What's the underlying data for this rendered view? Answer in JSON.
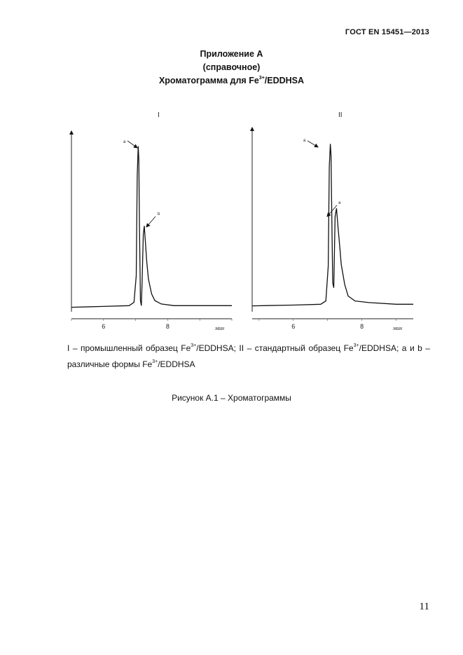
{
  "header": {
    "code": "ГОСТ EN 15451—2013"
  },
  "title": {
    "line1": "Приложение А",
    "line2": "(справочное)",
    "line3_prefix": "Хроматограмма для Fe",
    "line3_sup": "3+",
    "line3_suffix": "/EDDHSA"
  },
  "chart_data": [
    {
      "type": "line",
      "panel_label": "I",
      "xlabel": "мин",
      "x_ticks": [
        "6",
        "8"
      ],
      "xlim": [
        5,
        10
      ],
      "annotations": [
        "a",
        "b"
      ],
      "series": [
        {
          "x": [
            5.0,
            6.0,
            6.8,
            6.95,
            7.02,
            7.05,
            7.08,
            7.1,
            7.12,
            7.15,
            7.18,
            7.2,
            7.24,
            7.27,
            7.3,
            7.35,
            7.4,
            7.5,
            7.6,
            7.8,
            8.2,
            9.0,
            10.0
          ],
          "y": [
            1,
            1.5,
            2,
            4,
            20,
            80,
            98,
            90,
            50,
            5,
            2,
            15,
            45,
            50,
            42,
            28,
            18,
            9,
            5,
            3,
            2,
            2,
            2
          ]
        }
      ]
    },
    {
      "type": "line",
      "panel_label": "II",
      "xlabel": "мин",
      "x_ticks": [
        "6",
        "8"
      ],
      "xlim": [
        4.8,
        9.5
      ],
      "annotations": [
        "a",
        "a"
      ],
      "series": [
        {
          "x": [
            4.8,
            6.0,
            6.8,
            6.95,
            7.02,
            7.05,
            7.08,
            7.1,
            7.13,
            7.15,
            7.18,
            7.22,
            7.26,
            7.3,
            7.35,
            7.4,
            7.5,
            7.6,
            7.8,
            8.2,
            9.0,
            9.5
          ],
          "y": [
            1,
            1.5,
            2,
            4,
            25,
            85,
            99,
            92,
            45,
            15,
            12,
            55,
            60,
            50,
            38,
            26,
            14,
            7,
            4,
            3,
            2,
            2
          ]
        }
      ]
    }
  ],
  "caption": {
    "part1": "I – промышленный образец Fe",
    "sup1": "3+",
    "part2": "/EDDHSA; II – стандартный образец Fe",
    "sup2": "3+",
    "part3": "/EDDHSA; a и b – различные формы Fe",
    "sup3": "3+",
    "part4": "/EDDHSA"
  },
  "figure_caption": "Рисунок А.1 – Хроматограммы",
  "page_number": "11"
}
